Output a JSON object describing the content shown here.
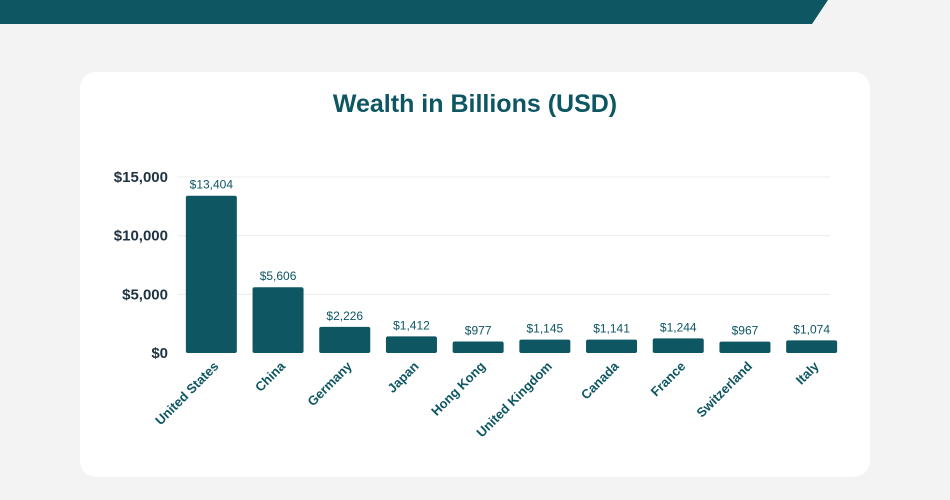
{
  "colors": {
    "accent": "#0d5662",
    "background": "#f3f3f3",
    "card": "#ffffff"
  },
  "chart_data": {
    "type": "bar",
    "title": "Wealth in Billions (USD)",
    "xlabel": "",
    "ylabel": "",
    "categories": [
      "United States",
      "China",
      "Germany",
      "Japan",
      "Hong Kong",
      "United Kingdom",
      "Canada",
      "France",
      "Switzerland",
      "Italy"
    ],
    "values": [
      13404,
      5606,
      2226,
      1412,
      977,
      1145,
      1141,
      1244,
      967,
      1074
    ],
    "value_labels": [
      "$13,404",
      "$5,606",
      "$2,226",
      "$1,412",
      "$977",
      "$1,145",
      "$1,141",
      "$1,244",
      "$967",
      "$1,074"
    ],
    "ylim": [
      0,
      15000
    ],
    "yticks": [
      0,
      5000,
      10000,
      15000
    ],
    "ytick_labels": [
      "$0",
      "$5,000",
      "$10,000",
      "$15,000"
    ],
    "grid": true,
    "legend": "none"
  }
}
